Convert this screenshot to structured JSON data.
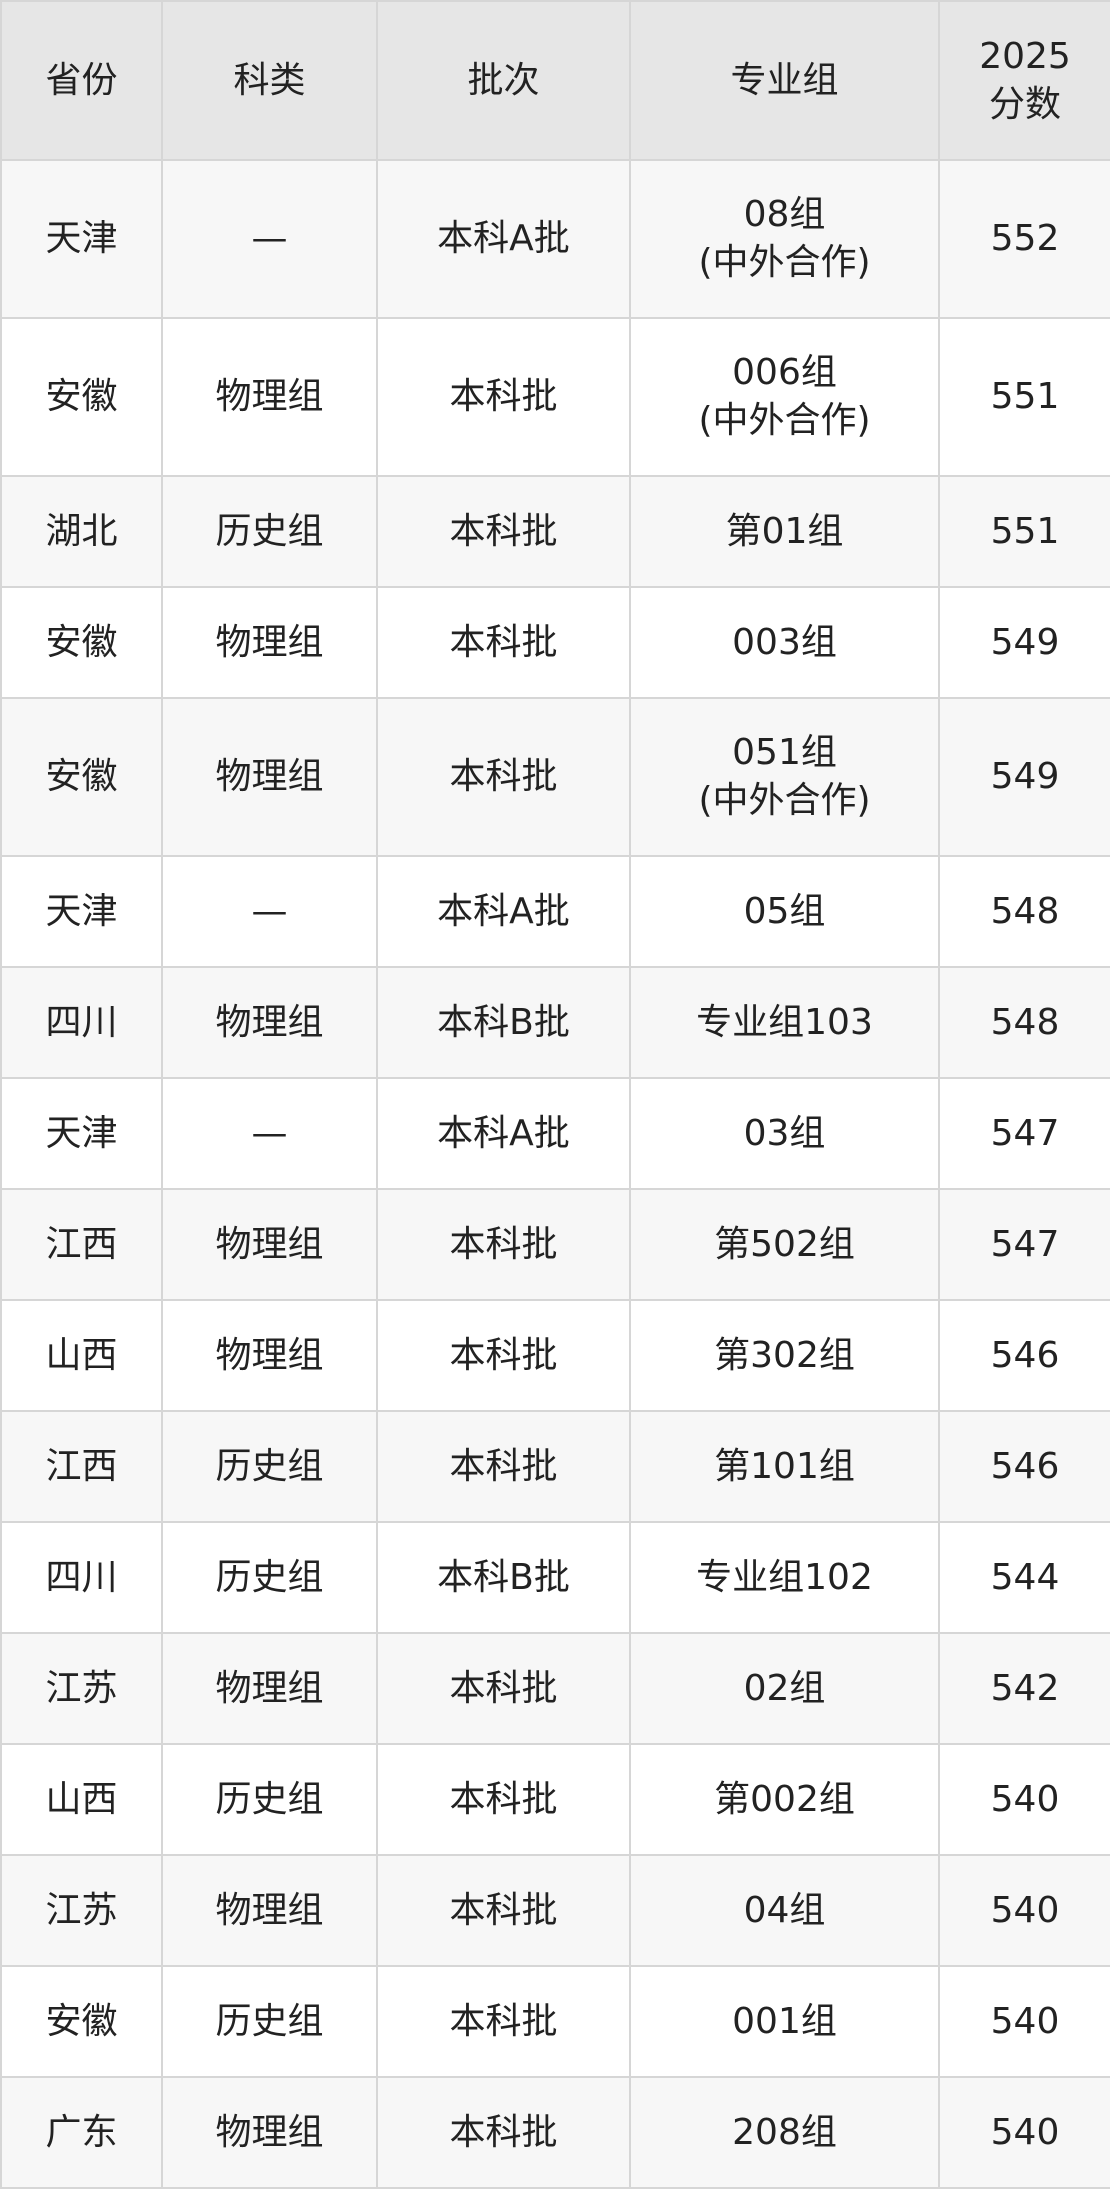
{
  "table": {
    "headers": [
      "省份",
      "科类",
      "批次",
      "专业组",
      "2025\n分数"
    ],
    "header_lines": [
      [
        "省份"
      ],
      [
        "科类"
      ],
      [
        "批次"
      ],
      [
        "专业组"
      ],
      [
        "2025",
        "分数"
      ]
    ],
    "rows": [
      {
        "province": "天津",
        "category": "—",
        "batch": "本科A批",
        "group": [
          "08组",
          "(中外合作)"
        ],
        "score": "552"
      },
      {
        "province": "安徽",
        "category": "物理组",
        "batch": "本科批",
        "group": [
          "006组",
          "(中外合作)"
        ],
        "score": "551"
      },
      {
        "province": "湖北",
        "category": "历史组",
        "batch": "本科批",
        "group": [
          "第01组"
        ],
        "score": "551"
      },
      {
        "province": "安徽",
        "category": "物理组",
        "batch": "本科批",
        "group": [
          "003组"
        ],
        "score": "549"
      },
      {
        "province": "安徽",
        "category": "物理组",
        "batch": "本科批",
        "group": [
          "051组",
          "(中外合作)"
        ],
        "score": "549"
      },
      {
        "province": "天津",
        "category": "—",
        "batch": "本科A批",
        "group": [
          "05组"
        ],
        "score": "548"
      },
      {
        "province": "四川",
        "category": "物理组",
        "batch": "本科B批",
        "group": [
          "专业组103"
        ],
        "score": "548"
      },
      {
        "province": "天津",
        "category": "—",
        "batch": "本科A批",
        "group": [
          "03组"
        ],
        "score": "547"
      },
      {
        "province": "江西",
        "category": "物理组",
        "batch": "本科批",
        "group": [
          "第502组"
        ],
        "score": "547"
      },
      {
        "province": "山西",
        "category": "物理组",
        "batch": "本科批",
        "group": [
          "第302组"
        ],
        "score": "546"
      },
      {
        "province": "江西",
        "category": "历史组",
        "batch": "本科批",
        "group": [
          "第101组"
        ],
        "score": "546"
      },
      {
        "province": "四川",
        "category": "历史组",
        "batch": "本科B批",
        "group": [
          "专业组102"
        ],
        "score": "544"
      },
      {
        "province": "江苏",
        "category": "物理组",
        "batch": "本科批",
        "group": [
          "02组"
        ],
        "score": "542"
      },
      {
        "province": "山西",
        "category": "历史组",
        "batch": "本科批",
        "group": [
          "第002组"
        ],
        "score": "540"
      },
      {
        "province": "江苏",
        "category": "物理组",
        "batch": "本科批",
        "group": [
          "04组"
        ],
        "score": "540"
      },
      {
        "province": "安徽",
        "category": "历史组",
        "batch": "本科批",
        "group": [
          "001组"
        ],
        "score": "540"
      },
      {
        "province": "广东",
        "category": "物理组",
        "batch": "本科批",
        "group": [
          "208组"
        ],
        "score": "540"
      }
    ]
  },
  "colors": {
    "header_bg": "#e6e6e6",
    "row_alt_bg": "#f7f7f7",
    "border": "#d6d6d6",
    "text": "#222222"
  }
}
